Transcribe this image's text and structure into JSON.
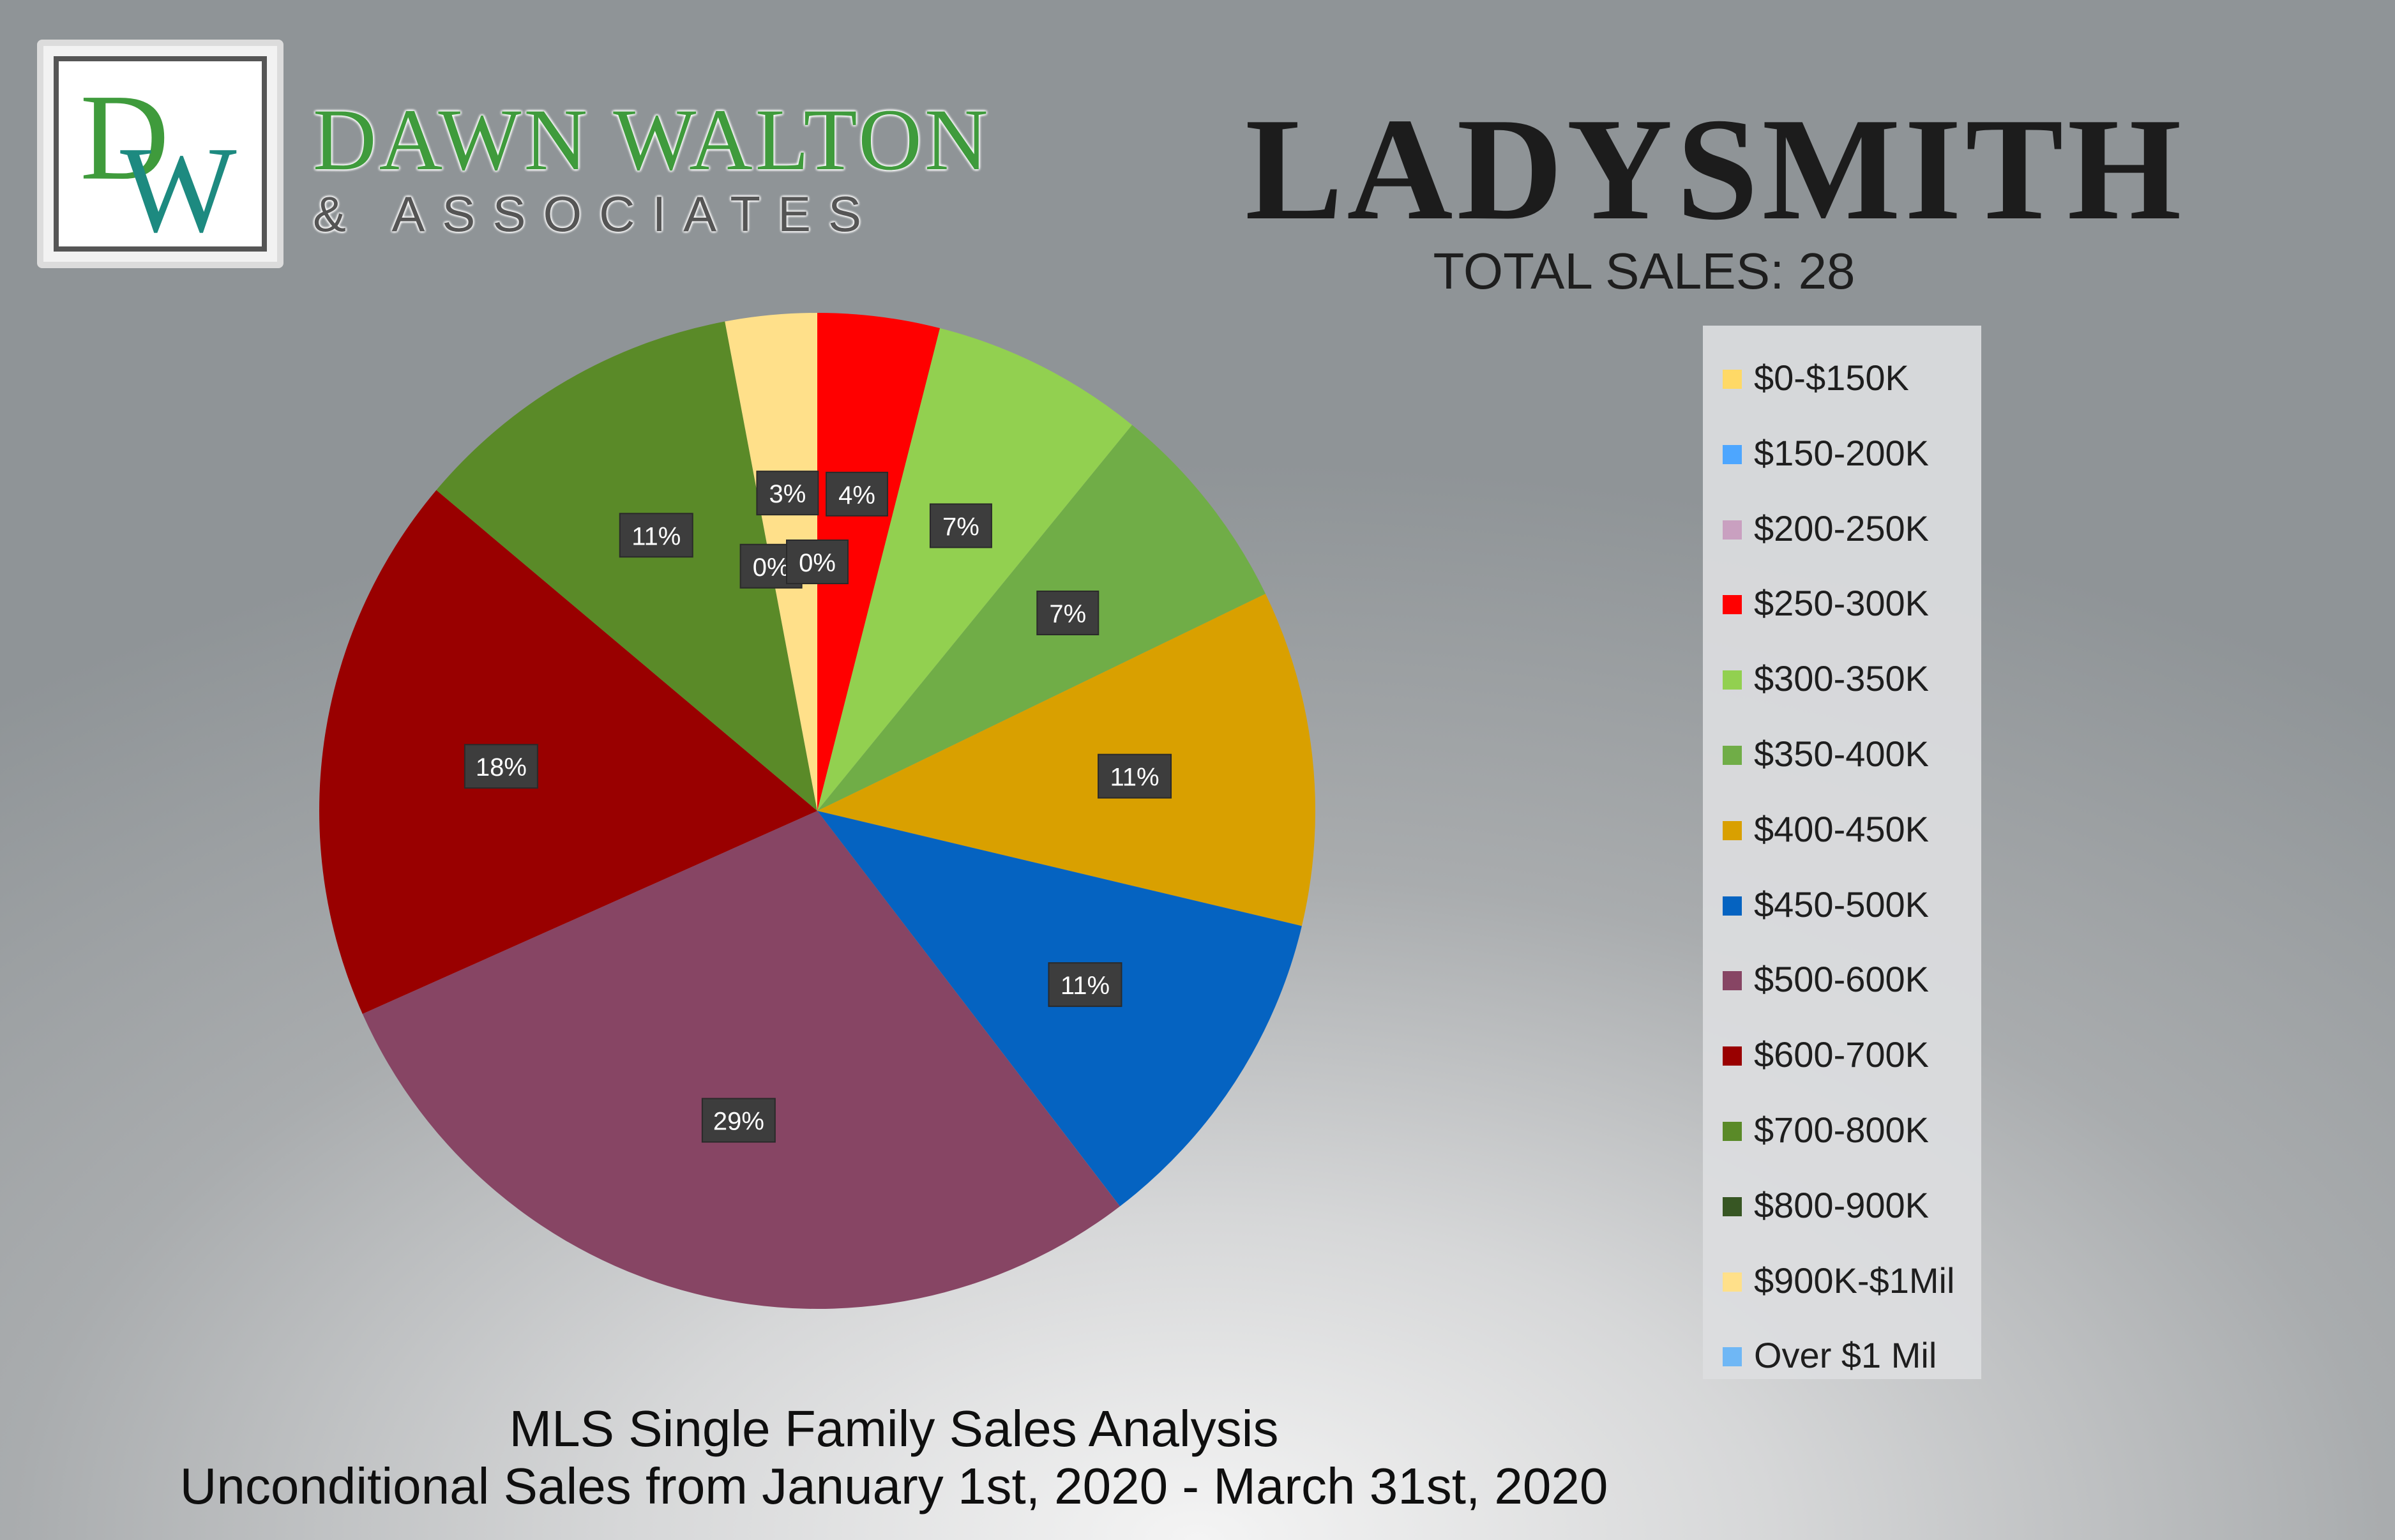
{
  "brand": {
    "monogram": "DW",
    "name": "DAWN WALTON",
    "subtitle": "& ASSOCIATES",
    "colors": {
      "green": "#3f9b3c",
      "teal": "#1d8a80"
    }
  },
  "header": {
    "title": "LADYSMITH",
    "total_sales": "TOTAL SALES: 28"
  },
  "chart_data": {
    "type": "pie",
    "start_angle_deg": 0,
    "direction": "clockwise",
    "label_style": "white text on dark boxes",
    "slices": [
      {
        "label": "$0-$150K",
        "value": 0,
        "data_label": "0%",
        "color": "#ffd966"
      },
      {
        "label": "$150-200K",
        "value": 0,
        "data_label": "0%",
        "color": "#4da6ff"
      },
      {
        "label": "$200-250K",
        "value": 0,
        "data_label": "0%",
        "color": "#c9a0c0"
      },
      {
        "label": "$250-300K",
        "value": 4,
        "data_label": "4%",
        "color": "#ff0000"
      },
      {
        "label": "$300-350K",
        "value": 7,
        "data_label": "7%",
        "color": "#92d050"
      },
      {
        "label": "$350-400K",
        "value": 7,
        "data_label": "7%",
        "color": "#70ad47"
      },
      {
        "label": "$400-450K",
        "value": 11,
        "data_label": "11%",
        "color": "#d9a000"
      },
      {
        "label": "$450-500K",
        "value": 11,
        "data_label": "11%",
        "color": "#0563c1"
      },
      {
        "label": "$500-600K",
        "value": 29,
        "data_label": "29%",
        "color": "#874564"
      },
      {
        "label": "$600-700K",
        "value": 18,
        "data_label": "18%",
        "color": "#990000"
      },
      {
        "label": "$700-800K",
        "value": 11,
        "data_label": "11%",
        "color": "#5a8a28"
      },
      {
        "label": "$800-900K",
        "value": 0,
        "data_label": "0%",
        "color": "#375623"
      },
      {
        "label": "$900K-$1Mil",
        "value": 3,
        "data_label": "3%",
        "color": "#ffe08a"
      },
      {
        "label": "Over $1 Mil",
        "value": 0,
        "data_label": "0%",
        "color": "#6fb7f5"
      }
    ]
  },
  "footer": {
    "line1": "MLS Single Family Sales Analysis",
    "line2": "Unconditional Sales from January 1st, 2020 - March 31st, 2020"
  }
}
